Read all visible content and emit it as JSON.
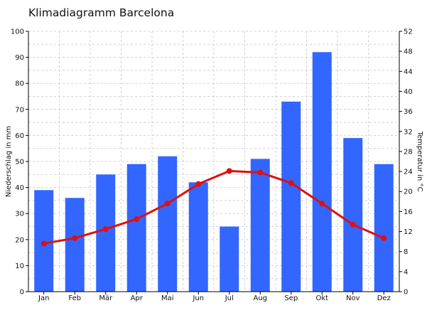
{
  "chart_data": {
    "type": "bar+line",
    "title": "Klimadiagramm Barcelona",
    "categories": [
      "Jan",
      "Feb",
      "Mär",
      "Apr",
      "Mai",
      "Jun",
      "Jul",
      "Aug",
      "Sep",
      "Okt",
      "Nov",
      "Dez"
    ],
    "series": [
      {
        "name": "Niederschlag",
        "type": "bar",
        "axis": "left",
        "values": [
          39,
          36,
          45,
          49,
          52,
          42,
          25,
          51,
          73,
          92,
          59,
          49
        ]
      },
      {
        "name": "Temperatur",
        "type": "line",
        "axis": "right",
        "values": [
          9.6,
          10.7,
          12.5,
          14.5,
          17.6,
          21.5,
          24.1,
          23.8,
          21.7,
          17.6,
          13.4,
          10.7
        ]
      }
    ],
    "ylabel": "Niederschlag in mm",
    "ylabel_right": "Temperatur in °C",
    "ylim": [
      0,
      100
    ],
    "ylim_right": [
      0,
      52
    ],
    "yticks": [
      0,
      10,
      20,
      30,
      40,
      50,
      60,
      70,
      80,
      90,
      100
    ],
    "yticks_right": [
      0,
      4,
      8,
      12,
      16,
      20,
      24,
      28,
      32,
      36,
      40,
      44,
      48,
      52
    ],
    "grid": true,
    "colors": {
      "bars": "#3366ff",
      "line": "#dd1111",
      "grid": "#d0d0d0",
      "axis": "#000000"
    }
  }
}
